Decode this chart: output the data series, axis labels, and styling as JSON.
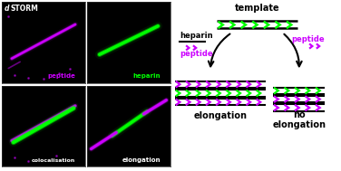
{
  "bg_color": "#000000",
  "white_bg": "#ffffff",
  "purple": "#cc00ff",
  "green": "#00ff00",
  "black": "#000000",
  "white": "#ffffff",
  "panel_labels": [
    "peptide",
    "heparin",
    "colocalisation",
    "elongation"
  ],
  "diagram_labels": {
    "template": "template",
    "heparin": "heparin",
    "peptide_left": "peptide",
    "peptide_right": "peptide",
    "elongation": "elongation",
    "no_elongation": "no\nelongation"
  }
}
